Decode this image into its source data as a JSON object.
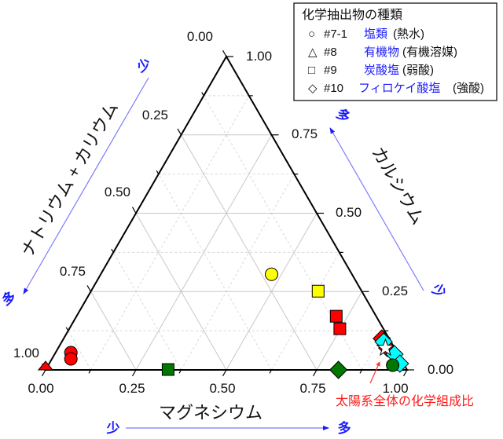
{
  "chart_data": {
    "type": "ternary-scatter",
    "title": "",
    "axes": {
      "bottom": {
        "label": "マグネシウム",
        "ticks": [
          "0.00",
          "0.25",
          "0.50",
          "0.75",
          "1.00"
        ],
        "direction_low": "少",
        "direction_high": "多"
      },
      "left": {
        "label": "ナトリウム + カリウム",
        "ticks": [
          "0.00",
          "0.25",
          "0.50",
          "0.75",
          "1.00"
        ],
        "direction_low": "少",
        "direction_high": "多"
      },
      "right": {
        "label": "カルシウム",
        "ticks": [
          "0.00",
          "0.25",
          "0.50",
          "0.75",
          "1.00"
        ],
        "direction_low": "少",
        "direction_high": "多"
      }
    },
    "grid": {
      "major": 0.25,
      "minor": 0.125,
      "major_style": "solid",
      "minor_style": "dashed"
    },
    "legend": {
      "title": "化学抽出物の種類",
      "position": "top-right",
      "entries": [
        {
          "symbol": "circle",
          "id": "#7-1",
          "name": "塩類",
          "note": "(熱水)"
        },
        {
          "symbol": "triangle",
          "id": "#8",
          "name": "有機物",
          "note": "(有機溶媒)"
        },
        {
          "symbol": "square",
          "id": "#9",
          "name": "炭酸塩",
          "note": "(弱酸)"
        },
        {
          "symbol": "diamond",
          "id": "#10",
          "name": "フィロケイ酸塩",
          "note": "(強酸)"
        }
      ]
    },
    "series": [
      {
        "name": "yellow",
        "color": "#ffff00",
        "points": [
          {
            "symbol": "circle",
            "mg": 0.48,
            "ca": 0.29,
            "nak": 0.23
          },
          {
            "symbol": "square",
            "mg": 0.63,
            "ca": 0.25,
            "nak": 0.12
          }
        ]
      },
      {
        "name": "red",
        "color": "#ff0000",
        "points": [
          {
            "symbol": "triangle",
            "mg": 0.0,
            "ca": 0.0,
            "nak": 1.0
          },
          {
            "symbol": "circle",
            "mg": 0.05,
            "ca": 0.04,
            "nak": 0.91
          },
          {
            "symbol": "circle",
            "mg": 0.06,
            "ca": 0.02,
            "nak": 0.92
          },
          {
            "symbol": "square",
            "mg": 0.72,
            "ca": 0.17,
            "nak": 0.11
          },
          {
            "symbol": "square",
            "mg": 0.75,
            "ca": 0.13,
            "nak": 0.12
          },
          {
            "symbol": "diamond",
            "mg": 0.88,
            "ca": 0.1,
            "nak": 0.02
          },
          {
            "symbol": "diamond",
            "mg": 0.91,
            "ca": 0.07,
            "nak": 0.02
          }
        ]
      },
      {
        "name": "cyan",
        "color": "#00ffff",
        "points": [
          {
            "symbol": "diamond",
            "mg": 0.89,
            "ca": 0.09,
            "nak": 0.02
          },
          {
            "symbol": "diamond",
            "mg": 0.94,
            "ca": 0.05,
            "nak": 0.01
          },
          {
            "symbol": "diamond",
            "mg": 0.97,
            "ca": 0.02,
            "nak": 0.01
          }
        ]
      },
      {
        "name": "green",
        "color": "#007700",
        "points": [
          {
            "symbol": "square",
            "mg": 0.34,
            "ca": 0.0,
            "nak": 0.66
          },
          {
            "symbol": "diamond",
            "mg": 0.81,
            "ca": 0.0,
            "nak": 0.19
          },
          {
            "symbol": "circle",
            "mg": 0.96,
            "ca": 0.0,
            "nak": 0.04
          }
        ]
      },
      {
        "name": "solar",
        "color": "#ffffff",
        "points": [
          {
            "symbol": "star",
            "mg": 0.91,
            "ca": 0.06,
            "nak": 0.03
          }
        ]
      }
    ],
    "annotations": [
      {
        "text": "太陽系全体の化学組成比",
        "color": "#ff1a1a",
        "target": "star"
      }
    ]
  },
  "labels": {
    "ticks": {
      "t000": "0.00",
      "t025": "0.25",
      "t050": "0.50",
      "t075": "0.75",
      "t100": "1.00"
    },
    "bottom_title": "マグネシウム",
    "left_title": "ナトリウム + カリウム",
    "right_title": "カルシウム",
    "few": "少",
    "many": "多",
    "annotation": "太陽系全体の化学組成比",
    "legend": {
      "title": "化学抽出物の種類",
      "r1_sym": "○",
      "r1_id": "#7-1",
      "r1_name": "塩類",
      "r1_note": "(熱水)",
      "r2_sym": "△",
      "r2_id": "#8",
      "r2_name": "有機物",
      "r2_note": "(有機溶媒)",
      "r3_sym": "□",
      "r3_id": "#9",
      "r3_name": "炭酸塩",
      "r3_note": "(弱酸)",
      "r4_sym": "◇",
      "r4_id": "#10",
      "r4_name": "フィロケイ酸塩",
      "r4_note": "(強酸)"
    }
  }
}
